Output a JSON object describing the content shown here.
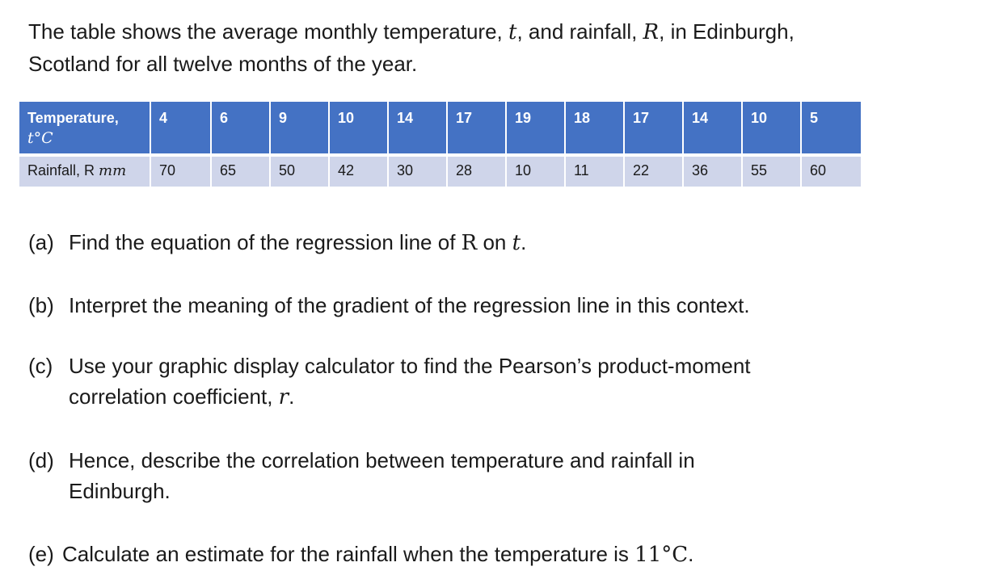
{
  "intro": {
    "line1_pre": "The table shows the average monthly temperature, ",
    "t_var": "t",
    "line1_mid": ", and rainfall, ",
    "R_var": "R",
    "line1_post": ", in Edinburgh,",
    "line2": "Scotland for all twelve months of the year."
  },
  "table": {
    "temperature_label": "Temperature,",
    "temperature_unit": "t°C",
    "rainfall_label": "Rainfall, R ",
    "rainfall_unit": "mm",
    "temperatures": [
      "4",
      "6",
      "9",
      "10",
      "14",
      "17",
      "19",
      "18",
      "17",
      "14",
      "10",
      "5"
    ],
    "rainfall": [
      "70",
      "65",
      "50",
      "42",
      "30",
      "28",
      "10",
      "11",
      "22",
      "36",
      "55",
      "60"
    ]
  },
  "questions": {
    "a": {
      "label": "(a)",
      "text": "Find the equation of the regression line of ",
      "R": "R",
      "on": " on ",
      "t": "t",
      "end": "."
    },
    "b": {
      "label": "(b)",
      "text": "Interpret the meaning of the gradient of the regression line in this context."
    },
    "c": {
      "label": "(c)",
      "text1": "Use your graphic display calculator to find the Pearson’s product-moment",
      "text2": "correlation coefficient, ",
      "r": "r",
      "end": "."
    },
    "d": {
      "label": "(d)",
      "text1": "Hence, describe the correlation between temperature and rainfall in",
      "text2": "Edinburgh."
    },
    "e": {
      "label": "(e)",
      "text": "Calculate an estimate for the rainfall when the temperature is ",
      "value": "11°C",
      "end": "."
    }
  }
}
